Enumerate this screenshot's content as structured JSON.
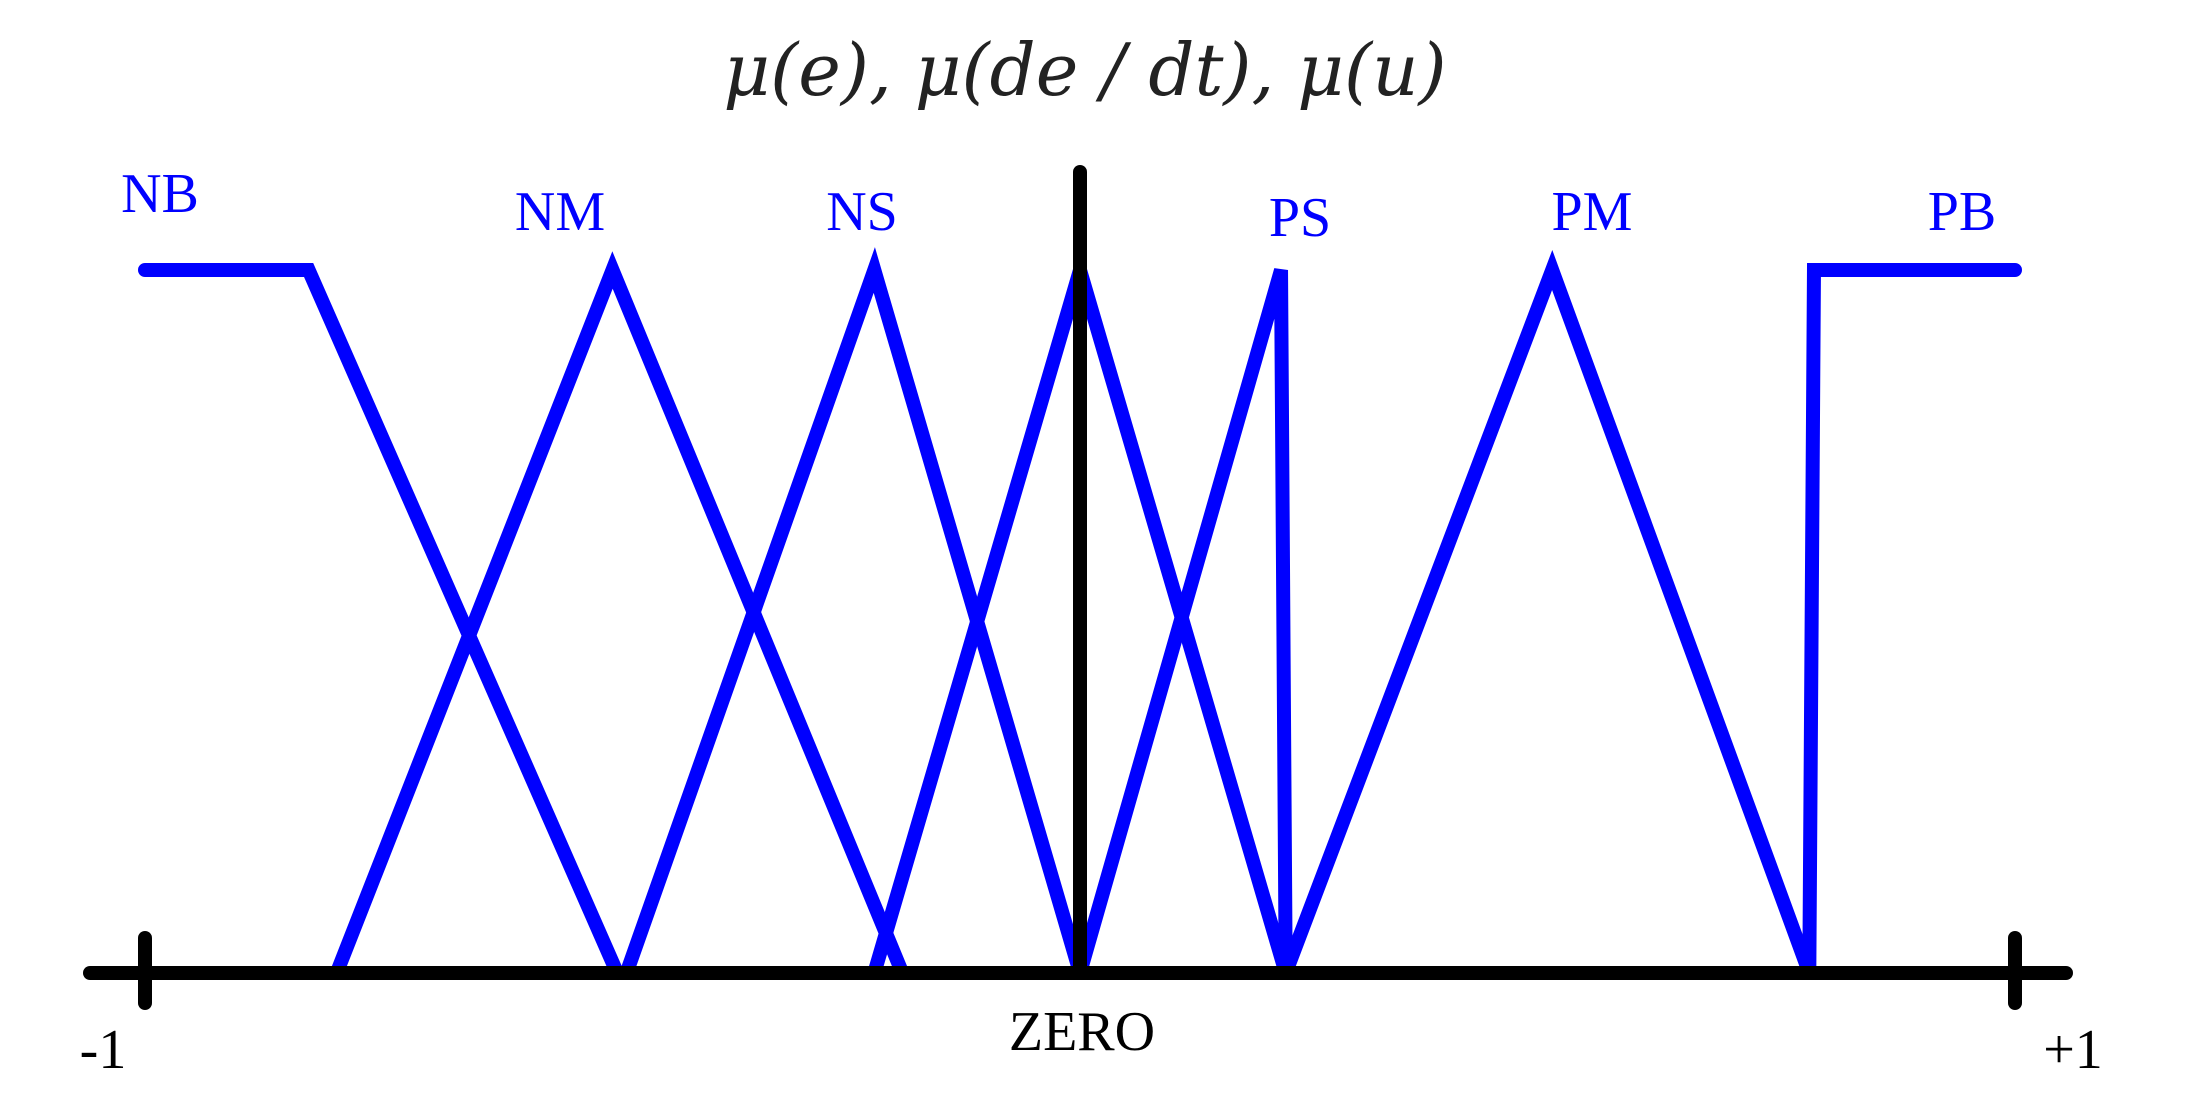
{
  "title": "μ(e), μ(de / dt), μ(u)",
  "colors": {
    "membership": "#0000ff",
    "axis": "#000000"
  },
  "axis": {
    "min_label": "-1",
    "max_label": "+1",
    "center_label": "ZERO",
    "domain": [
      -1,
      1
    ]
  },
  "membership_functions": [
    {
      "label": "NB",
      "shape": "left-shoulder",
      "points": [
        [
          -1.0,
          1
        ],
        [
          -0.825,
          1
        ],
        [
          -0.495,
          0
        ]
      ]
    },
    {
      "label": "NM",
      "shape": "triangle",
      "points": [
        [
          -0.795,
          0
        ],
        [
          -0.5,
          1
        ],
        [
          -0.19,
          0
        ]
      ]
    },
    {
      "label": "NS",
      "shape": "triangle",
      "points": [
        [
          -0.485,
          0
        ],
        [
          -0.22,
          1
        ],
        [
          0.0,
          0
        ]
      ]
    },
    {
      "label": "PS",
      "shape": "triangle",
      "points": [
        [
          0.0,
          0
        ],
        [
          0.215,
          1
        ],
        [
          0.22,
          0
        ]
      ]
    },
    {
      "label": "PM",
      "shape": "triangle",
      "points": [
        [
          0.22,
          0
        ],
        [
          0.505,
          1
        ],
        [
          0.78,
          0
        ]
      ]
    },
    {
      "label": "PB",
      "shape": "right-shoulder",
      "points": [
        [
          0.78,
          0
        ],
        [
          0.785,
          1
        ],
        [
          1.0,
          1
        ]
      ]
    }
  ],
  "center_triangle": {
    "label": "ZERO",
    "points": [
      [
        -0.22,
        0
      ],
      [
        0.0,
        1
      ],
      [
        0.22,
        0
      ]
    ]
  }
}
